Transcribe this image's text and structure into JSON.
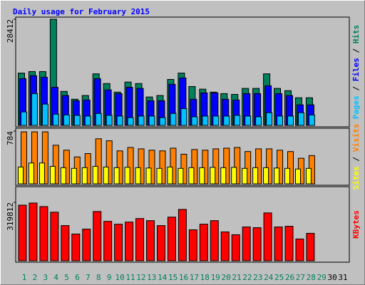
{
  "chart_data": [
    {
      "type": "bar",
      "title": "Daily usage for February 2015",
      "ylim": [
        0,
        28412
      ],
      "yticks": [
        28412
      ],
      "legend_separator": " / ",
      "series": [
        {
          "name": "Hits",
          "color": "#00805c",
          "values": [
            14000,
            14400,
            14400,
            28412,
            9100,
            7000,
            8000,
            13800,
            11200,
            8900,
            11600,
            11200,
            7600,
            8000,
            12300,
            14000,
            10400,
            9700,
            8900,
            8500,
            8300,
            9900,
            9900,
            13800,
            9900,
            9300,
            7400,
            7400,
            null,
            null,
            null
          ]
        },
        {
          "name": "Files",
          "color": "#0000ff",
          "values": [
            12500,
            13300,
            12900,
            10200,
            8000,
            6600,
            6800,
            12500,
            9500,
            8500,
            10200,
            9900,
            6600,
            6600,
            11000,
            12700,
            7000,
            8700,
            8700,
            7000,
            6800,
            8500,
            8500,
            10600,
            8500,
            8000,
            5500,
            5500,
            null,
            null,
            null
          ]
        },
        {
          "name": "Pages",
          "color": "#00c0ff",
          "values": [
            3600,
            8500,
            5700,
            3000,
            2800,
            2700,
            2500,
            3200,
            2700,
            2500,
            2100,
            2500,
            2500,
            2100,
            3200,
            4500,
            2300,
            2500,
            2500,
            2500,
            2700,
            2500,
            2300,
            3400,
            2500,
            2500,
            3400,
            2800,
            null,
            null,
            null
          ]
        }
      ]
    },
    {
      "type": "bar",
      "ylim": [
        0,
        784
      ],
      "yticks": [
        784
      ],
      "legend_separator": " / ",
      "series": [
        {
          "name": "Visits",
          "color": "#ff8000",
          "values": [
            773,
            773,
            773,
            574,
            500,
            400,
            450,
            670,
            640,
            490,
            540,
            520,
            500,
            490,
            530,
            440,
            510,
            500,
            520,
            530,
            540,
            480,
            520,
            520,
            500,
            480,
            380,
            420,
            null,
            null,
            null
          ]
        },
        {
          "name": "Sites",
          "color": "#ffff00",
          "values": [
            250,
            310,
            310,
            260,
            240,
            230,
            240,
            260,
            250,
            240,
            245,
            240,
            235,
            230,
            250,
            230,
            240,
            240,
            245,
            240,
            245,
            230,
            240,
            240,
            235,
            230,
            220,
            230,
            null,
            null,
            null
          ]
        }
      ]
    },
    {
      "type": "bar",
      "ylim": [
        0,
        319812
      ],
      "yticks": [
        319812
      ],
      "categories": [
        1,
        2,
        3,
        4,
        5,
        6,
        7,
        8,
        9,
        10,
        11,
        12,
        13,
        14,
        15,
        16,
        17,
        18,
        19,
        20,
        21,
        22,
        23,
        24,
        25,
        26,
        27,
        28,
        29,
        30,
        31
      ],
      "category_colors": [
        "#00805c",
        "#00805c",
        "#00805c",
        "#00805c",
        "#00805c",
        "#00805c",
        "#00805c",
        "#00805c",
        "#00805c",
        "#00805c",
        "#00805c",
        "#00805c",
        "#00805c",
        "#00805c",
        "#00805c",
        "#00805c",
        "#00805c",
        "#00805c",
        "#00805c",
        "#00805c",
        "#00805c",
        "#00805c",
        "#00805c",
        "#00805c",
        "#00805c",
        "#00805c",
        "#00805c",
        "#00805c",
        "#00805c",
        "#000000",
        "#000000"
      ],
      "series": [
        {
          "name": "KBytes",
          "color": "#ff0000",
          "values": [
            304400,
            316000,
            296700,
            265900,
            192700,
            146400,
            173400,
            269700,
            215800,
            200400,
            211900,
            231200,
            219600,
            192700,
            238900,
            281300,
            169500,
            200400,
            219600,
            158000,
            142600,
            185000,
            181100,
            262000,
            185000,
            188800,
            119400,
            150300,
            null,
            null,
            null
          ]
        }
      ]
    }
  ]
}
